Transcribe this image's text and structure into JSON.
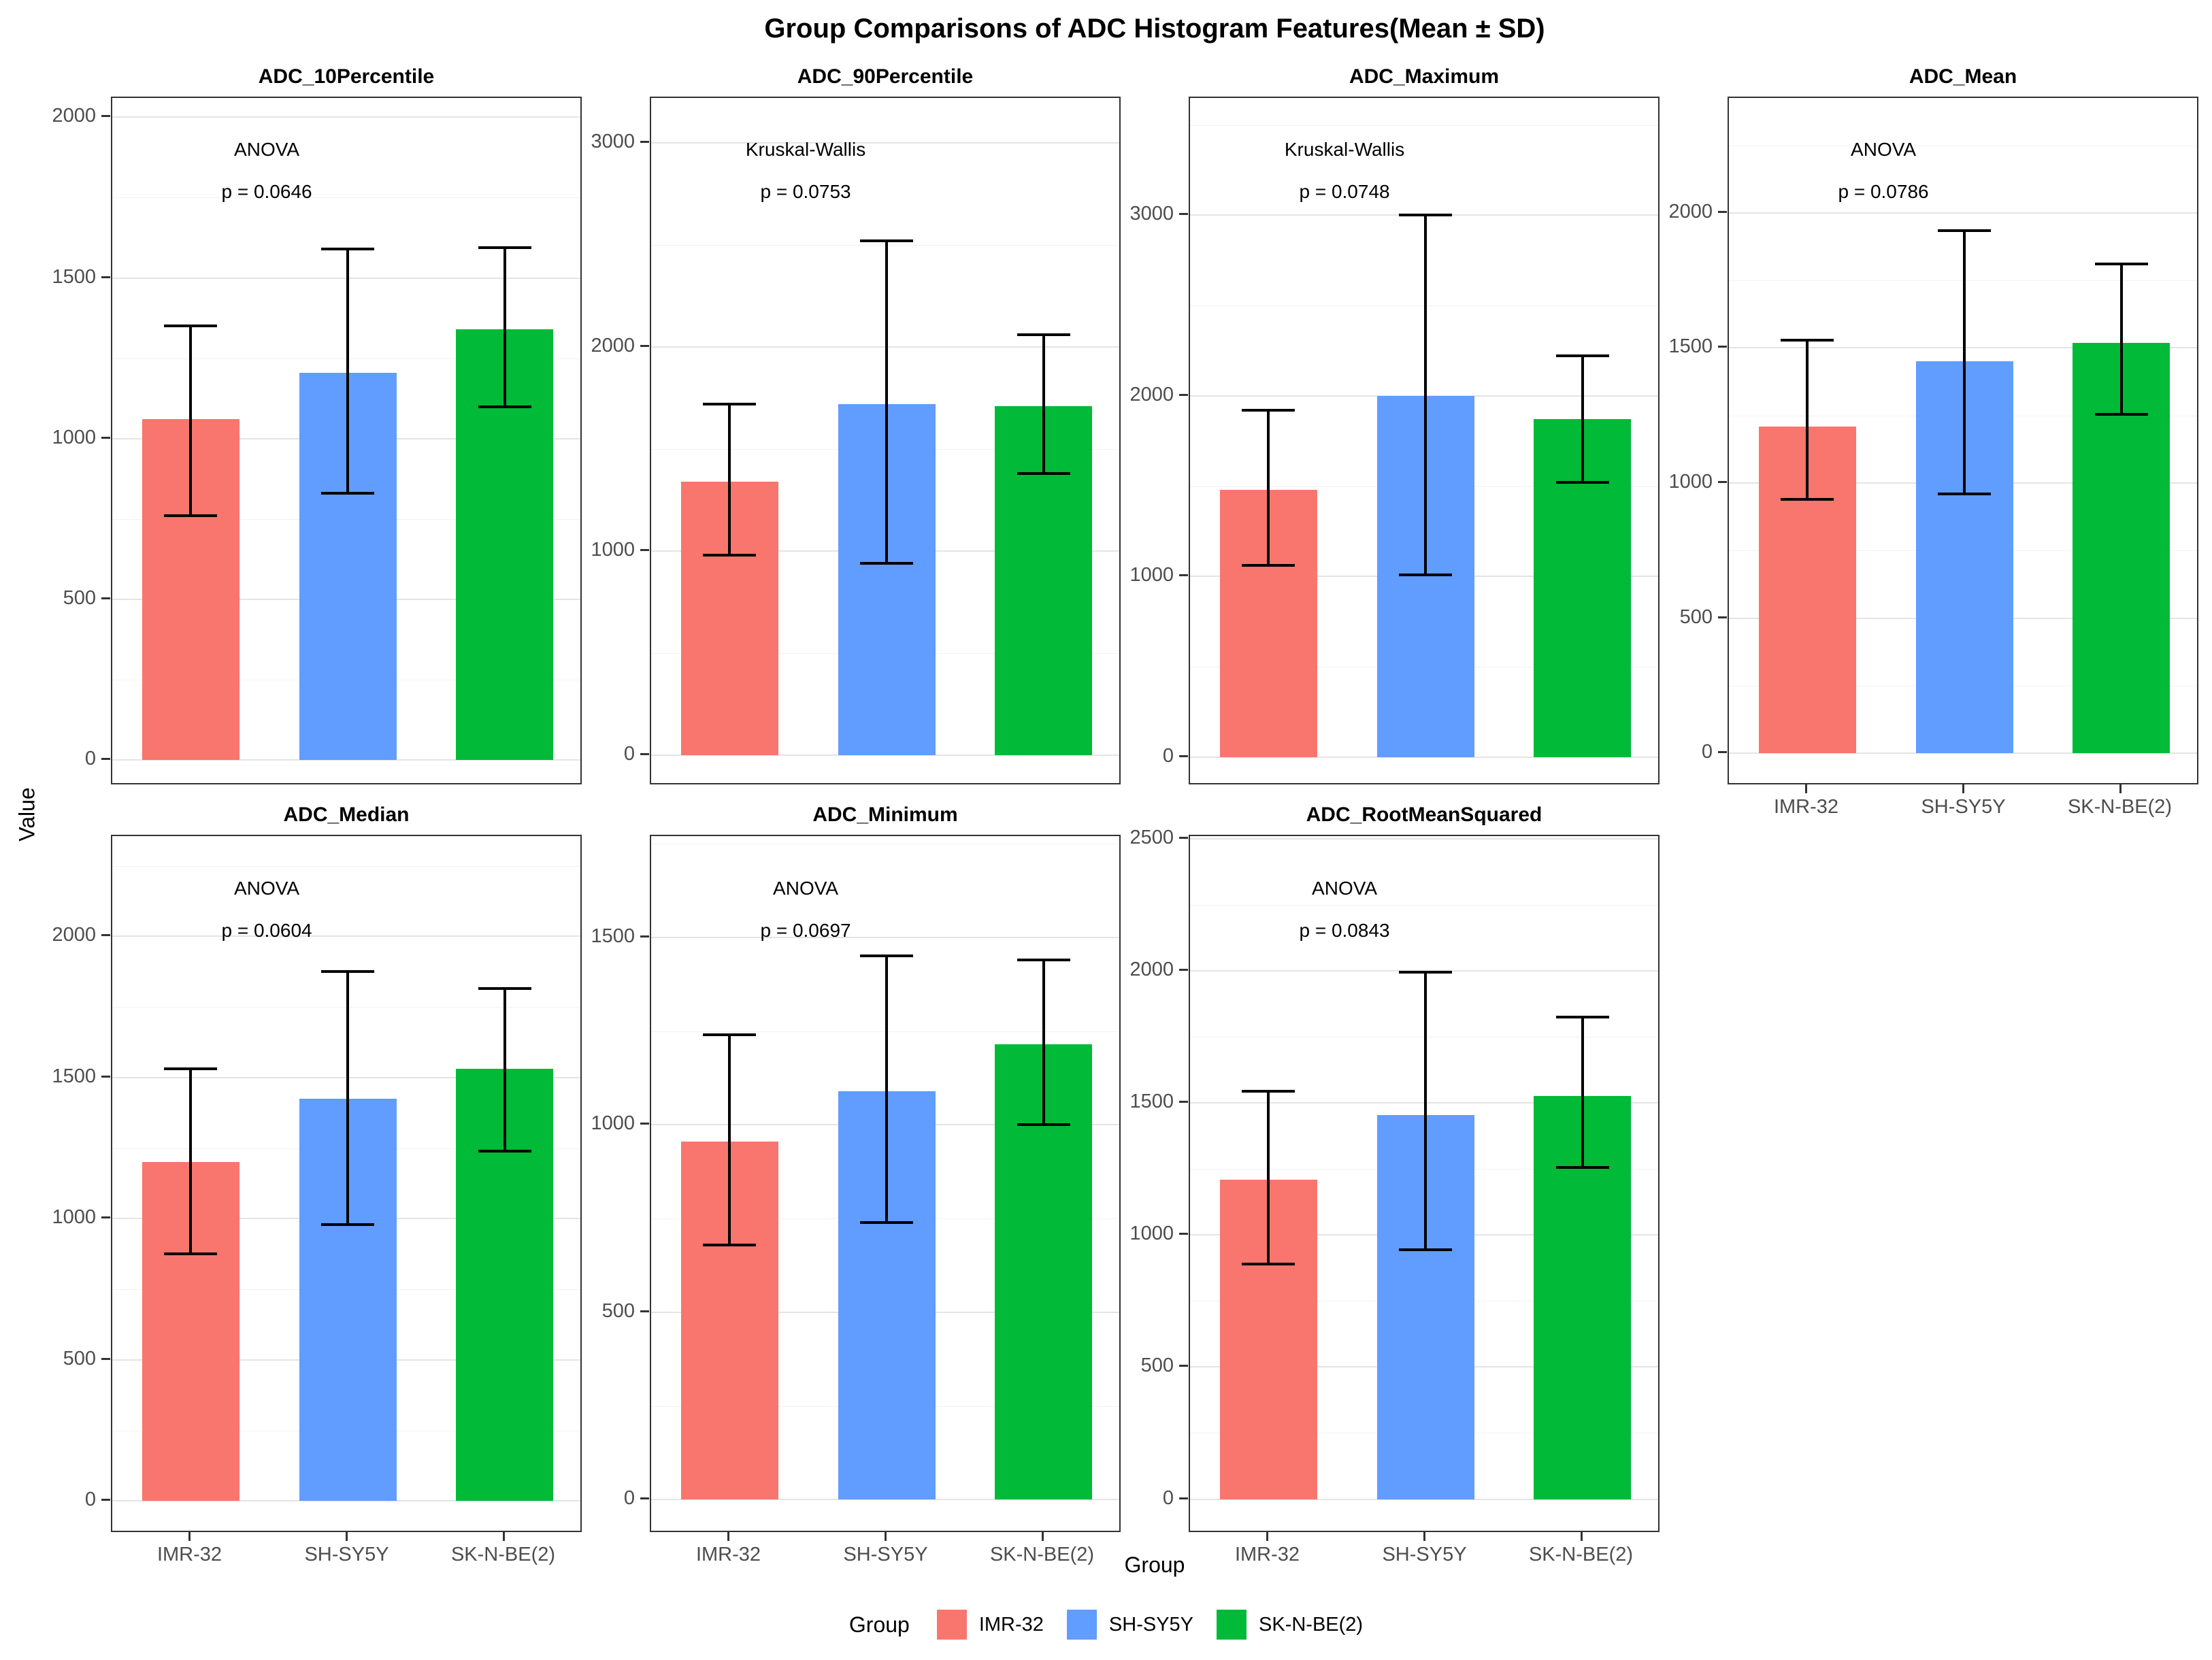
{
  "page": {
    "title": "Group Comparisons of ADC Histogram Features(Mean ± SD)",
    "y_axis_title": "Value",
    "x_axis_title": "Group",
    "legend_position": "bottom",
    "grid": true
  },
  "groups": [
    "IMR-32",
    "SH-SY5Y",
    "SK-N-BE(2)"
  ],
  "group_colors": [
    "#F8766D",
    "#619CFF",
    "#00BA38"
  ],
  "legend": {
    "title": "Group",
    "entries": [
      {
        "label": "IMR-32",
        "color": "#F8766D"
      },
      {
        "label": "SH-SY5Y",
        "color": "#619CFF"
      },
      {
        "label": "SK-N-BE(2)",
        "color": "#00BA38"
      }
    ]
  },
  "chart_data": [
    {
      "type": "bar",
      "title": "ADC_10Percentile",
      "stat_test": "ANOVA",
      "p_label": "p = 0.0646",
      "yticks": [
        0,
        500,
        1000,
        1500,
        2000
      ],
      "minor_step": 250,
      "ylim": [
        -80,
        2060
      ],
      "categories": [
        "IMR-32",
        "SH-SY5Y",
        "SK-N-BE(2)"
      ],
      "series": [
        {
          "group": "IMR-32",
          "mean": 1060,
          "sd_low": 760,
          "sd_high": 1350
        },
        {
          "group": "SH-SY5Y",
          "mean": 1205,
          "sd_low": 830,
          "sd_high": 1590
        },
        {
          "group": "SK-N-BE(2)",
          "mean": 1340,
          "sd_low": 1100,
          "sd_high": 1595
        }
      ],
      "show_x_labels": false
    },
    {
      "type": "bar",
      "title": "ADC_90Percentile",
      "stat_test": "Kruskal-Wallis",
      "p_label": "p = 0.0753",
      "yticks": [
        0,
        1000,
        2000,
        3000
      ],
      "minor_step": 500,
      "ylim": [
        -150,
        3220
      ],
      "categories": [
        "IMR-32",
        "SH-SY5Y",
        "SK-N-BE(2)"
      ],
      "series": [
        {
          "group": "IMR-32",
          "mean": 1340,
          "sd_low": 980,
          "sd_high": 1720
        },
        {
          "group": "SH-SY5Y",
          "mean": 1720,
          "sd_low": 940,
          "sd_high": 2520
        },
        {
          "group": "SK-N-BE(2)",
          "mean": 1710,
          "sd_low": 1380,
          "sd_high": 2060
        }
      ],
      "show_x_labels": false
    },
    {
      "type": "bar",
      "title": "ADC_Maximum",
      "stat_test": "Kruskal-Wallis",
      "p_label": "p = 0.0748",
      "yticks": [
        0,
        1000,
        2000,
        3000
      ],
      "minor_step": 500,
      "ylim": [
        -160,
        3650
      ],
      "categories": [
        "IMR-32",
        "SH-SY5Y",
        "SK-N-BE(2)"
      ],
      "series": [
        {
          "group": "IMR-32",
          "mean": 1480,
          "sd_low": 1060,
          "sd_high": 1920
        },
        {
          "group": "SH-SY5Y",
          "mean": 2000,
          "sd_low": 1010,
          "sd_high": 3000
        },
        {
          "group": "SK-N-BE(2)",
          "mean": 1870,
          "sd_low": 1520,
          "sd_high": 2220
        }
      ],
      "show_x_labels": false
    },
    {
      "type": "bar",
      "title": "ADC_Mean",
      "stat_test": "ANOVA",
      "p_label": "p = 0.0786",
      "yticks": [
        0,
        500,
        1000,
        1500,
        2000
      ],
      "minor_step": 250,
      "ylim": [
        -120,
        2425
      ],
      "categories": [
        "IMR-32",
        "SH-SY5Y",
        "SK-N-BE(2)"
      ],
      "series": [
        {
          "group": "IMR-32",
          "mean": 1210,
          "sd_low": 940,
          "sd_high": 1530
        },
        {
          "group": "SH-SY5Y",
          "mean": 1450,
          "sd_low": 960,
          "sd_high": 1935
        },
        {
          "group": "SK-N-BE(2)",
          "mean": 1520,
          "sd_low": 1255,
          "sd_high": 1810
        }
      ],
      "show_x_labels": true
    },
    {
      "type": "bar",
      "title": "ADC_Median",
      "stat_test": "ANOVA",
      "p_label": "p = 0.0604",
      "yticks": [
        0,
        500,
        1000,
        1500,
        2000
      ],
      "minor_step": 250,
      "ylim": [
        -115,
        2355
      ],
      "categories": [
        "IMR-32",
        "SH-SY5Y",
        "SK-N-BE(2)"
      ],
      "series": [
        {
          "group": "IMR-32",
          "mean": 1200,
          "sd_low": 875,
          "sd_high": 1530
        },
        {
          "group": "SH-SY5Y",
          "mean": 1425,
          "sd_low": 980,
          "sd_high": 1875
        },
        {
          "group": "SK-N-BE(2)",
          "mean": 1530,
          "sd_low": 1240,
          "sd_high": 1815
        }
      ],
      "show_x_labels": true
    },
    {
      "type": "bar",
      "title": "ADC_Minimum",
      "stat_test": "ANOVA",
      "p_label": "p = 0.0697",
      "yticks": [
        0,
        500,
        1000,
        1500
      ],
      "minor_step": 250,
      "ylim": [
        -90,
        1770
      ],
      "categories": [
        "IMR-32",
        "SH-SY5Y",
        "SK-N-BE(2)"
      ],
      "series": [
        {
          "group": "IMR-32",
          "mean": 955,
          "sd_low": 680,
          "sd_high": 1240
        },
        {
          "group": "SH-SY5Y",
          "mean": 1090,
          "sd_low": 740,
          "sd_high": 1450
        },
        {
          "group": "SK-N-BE(2)",
          "mean": 1215,
          "sd_low": 1000,
          "sd_high": 1440
        }
      ],
      "show_x_labels": true
    },
    {
      "type": "bar",
      "title": "ADC_RootMeanSquared",
      "stat_test": "ANOVA",
      "p_label": "p = 0.0843",
      "yticks": [
        0,
        500,
        1000,
        1500,
        2000,
        2500
      ],
      "minor_step": 250,
      "ylim": [
        -130,
        2510
      ],
      "categories": [
        "IMR-32",
        "SH-SY5Y",
        "SK-N-BE(2)"
      ],
      "series": [
        {
          "group": "IMR-32",
          "mean": 1210,
          "sd_low": 890,
          "sd_high": 1545
        },
        {
          "group": "SH-SY5Y",
          "mean": 1455,
          "sd_low": 945,
          "sd_high": 1995
        },
        {
          "group": "SK-N-BE(2)",
          "mean": 1525,
          "sd_low": 1255,
          "sd_high": 1825
        }
      ],
      "show_x_labels": true
    }
  ]
}
